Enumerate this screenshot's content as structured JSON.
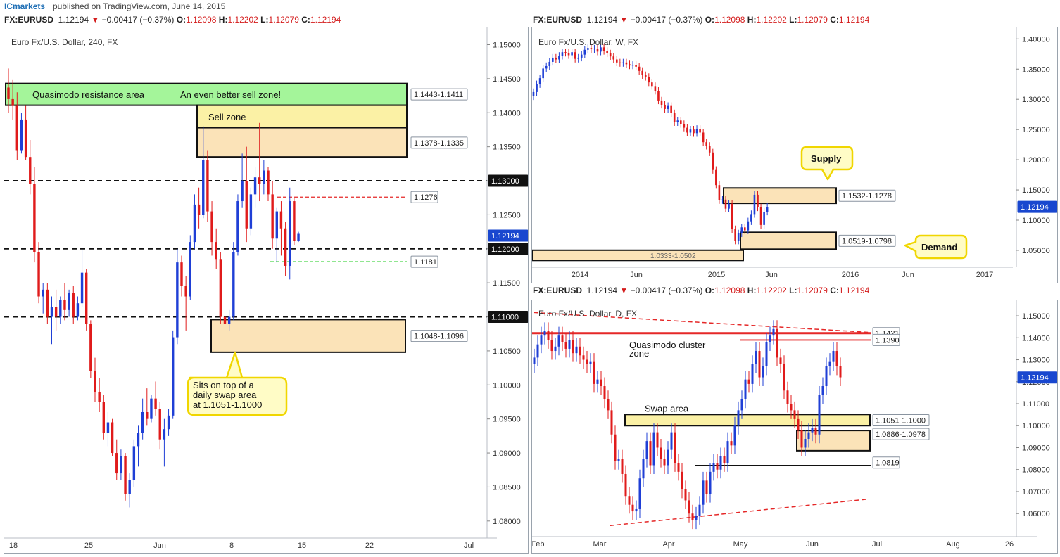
{
  "topbar": {
    "brand": "ICmarkets",
    "published": "published on TradingView.com, June 14, 2015"
  },
  "quote": {
    "symbol": "FX:EURUSD",
    "last": "1.12194",
    "change": "−0.00417 (−0.37%)",
    "open_label": "O:",
    "open": "1.12098",
    "high_label": "H:",
    "high": "1.12202",
    "low_label": "L:",
    "low": "1.12079",
    "close_label": "C:",
    "close": "1.12194"
  },
  "colors": {
    "bull": "#1f3fd6",
    "bear": "#e01b1b",
    "zone_fill": "#fbe3b8",
    "sell_zone_fill": "#fbf1a5",
    "resistance_fill": "#a4f59a",
    "callout_fill": "#fffcc6",
    "callout_border": "#f0d600",
    "price_tag": "#1947cf",
    "axis_text": "#333333"
  },
  "chart_data": [
    {
      "id": "h4",
      "type": "candlestick",
      "title": "Euro Fx/U.S. Dollar, 240, FX",
      "x_tick_labels": [
        "18",
        "25",
        "Jun",
        "8",
        "15",
        "22",
        "Jul"
      ],
      "y_tick_labels": [
        "1.15000",
        "1.14500",
        "1.14000",
        "1.13500",
        "1.13000",
        "1.12500",
        "1.12000",
        "1.11500",
        "1.11000",
        "1.10500",
        "1.10000",
        "1.09500",
        "1.09000",
        "1.08500",
        "1.08000"
      ],
      "ylim": [
        1.0775,
        1.1515
      ],
      "last_price_tag": "1.12194",
      "last_price": 1.12194,
      "zones": [
        {
          "label_left": "Quasimodo resistance area",
          "label_right": "An even better sell zone!",
          "tag": "1.1443-1.1411",
          "low": 1.1411,
          "high": 1.1443,
          "kind": "resistance"
        },
        {
          "label": "Sell zone",
          "tag": "1.1378-1.1335",
          "low": 1.1335,
          "high": 1.1378,
          "kind": "sell"
        },
        {
          "tag": "1.1048-1.1096",
          "low": 1.1048,
          "high": 1.1096,
          "kind": "demand"
        }
      ],
      "levels": [
        {
          "tag": "1.13000",
          "value": 1.13,
          "style": "black-dashed"
        },
        {
          "tag": "1.12000",
          "value": 1.12,
          "style": "black-dashed"
        },
        {
          "tag": "1.11000",
          "value": 1.11,
          "style": "black-dashed"
        },
        {
          "tag": "1.1276",
          "value": 1.1276,
          "style": "red-dashed"
        },
        {
          "tag": "1.1181",
          "value": 1.1181,
          "style": "green-dashed"
        }
      ],
      "callouts": [
        {
          "text": [
            "Sits on top of a",
            "daily swap area",
            "at 1.1051-1.1000"
          ]
        }
      ],
      "candles": [
        [
          1.1437,
          1.1465,
          1.14,
          1.142
        ],
        [
          1.142,
          1.1448,
          1.139,
          1.141
        ],
        [
          1.141,
          1.143,
          1.133,
          1.1345
        ],
        [
          1.1345,
          1.14,
          1.134,
          1.139
        ],
        [
          1.139,
          1.141,
          1.133,
          1.1335
        ],
        [
          1.1335,
          1.136,
          1.128,
          1.1295
        ],
        [
          1.1295,
          1.132,
          1.118,
          1.1195
        ],
        [
          1.1195,
          1.121,
          1.112,
          1.113
        ],
        [
          1.113,
          1.115,
          1.1105,
          1.114
        ],
        [
          1.114,
          1.115,
          1.109,
          1.11
        ],
        [
          1.11,
          1.113,
          1.106,
          1.1115
        ],
        [
          1.1115,
          1.114,
          1.108,
          1.11
        ],
        [
          1.11,
          1.113,
          1.109,
          1.1125
        ],
        [
          1.1125,
          1.115,
          1.1095,
          1.111
        ],
        [
          1.111,
          1.114,
          1.11,
          1.1135
        ],
        [
          1.1135,
          1.1145,
          1.109,
          1.11
        ],
        [
          1.11,
          1.113,
          1.1095,
          1.112
        ],
        [
          1.112,
          1.12,
          1.1115,
          1.1165
        ],
        [
          1.1165,
          1.117,
          1.108,
          1.109
        ],
        [
          1.109,
          1.1095,
          1.101,
          1.102
        ],
        [
          1.102,
          1.104,
          1.0975,
          1.099
        ],
        [
          1.099,
          1.101,
          1.096,
          1.0975
        ],
        [
          1.0975,
          1.0985,
          1.092,
          1.093
        ],
        [
          1.093,
          1.096,
          1.091,
          1.0945
        ],
        [
          1.0945,
          1.095,
          1.0895,
          1.09
        ],
        [
          1.09,
          1.092,
          1.086,
          1.087
        ],
        [
          1.087,
          1.0905,
          1.086,
          1.0895
        ],
        [
          1.0895,
          1.09,
          1.083,
          1.084
        ],
        [
          1.084,
          1.087,
          1.082,
          1.086
        ],
        [
          1.086,
          1.092,
          1.085,
          1.091
        ],
        [
          1.091,
          1.094,
          1.088,
          1.093
        ],
        [
          1.093,
          1.098,
          1.092,
          1.096
        ],
        [
          1.096,
          1.0995,
          1.094,
          1.095
        ],
        [
          1.095,
          1.0985,
          1.0945,
          1.098
        ],
        [
          1.098,
          1.1005,
          1.0955,
          1.0965
        ],
        [
          1.0965,
          1.0975,
          1.0905,
          1.092
        ],
        [
          1.092,
          1.095,
          1.088,
          1.0935
        ],
        [
          1.0935,
          1.0965,
          1.0925,
          1.0955
        ],
        [
          1.0955,
          1.108,
          1.095,
          1.107
        ],
        [
          1.107,
          1.12,
          1.106,
          1.118
        ],
        [
          1.118,
          1.119,
          1.113,
          1.1145
        ],
        [
          1.1145,
          1.116,
          1.108,
          1.113
        ],
        [
          1.113,
          1.122,
          1.1125,
          1.121
        ],
        [
          1.121,
          1.128,
          1.12,
          1.1265
        ],
        [
          1.1265,
          1.129,
          1.123,
          1.125
        ],
        [
          1.125,
          1.138,
          1.1245,
          1.133
        ],
        [
          1.133,
          1.1345,
          1.124,
          1.1255
        ],
        [
          1.1255,
          1.127,
          1.119,
          1.121
        ],
        [
          1.121,
          1.123,
          1.117,
          1.1185
        ],
        [
          1.1185,
          1.1195,
          1.109,
          1.11
        ],
        [
          1.11,
          1.113,
          1.105,
          1.109
        ],
        [
          1.109,
          1.111,
          1.108,
          1.11
        ],
        [
          1.11,
          1.121,
          1.1095,
          1.1195
        ],
        [
          1.1195,
          1.128,
          1.119,
          1.127
        ],
        [
          1.127,
          1.134,
          1.126,
          1.13
        ],
        [
          1.13,
          1.135,
          1.121,
          1.123
        ],
        [
          1.123,
          1.129,
          1.122,
          1.128
        ],
        [
          1.128,
          1.132,
          1.126,
          1.1305
        ],
        [
          1.1305,
          1.1385,
          1.127,
          1.1295
        ],
        [
          1.1295,
          1.133,
          1.128,
          1.1315
        ],
        [
          1.1315,
          1.132,
          1.127,
          1.128
        ],
        [
          1.128,
          1.13,
          1.12,
          1.1215
        ],
        [
          1.1215,
          1.126,
          1.118,
          1.1255
        ],
        [
          1.1255,
          1.127,
          1.119,
          1.123
        ],
        [
          1.123,
          1.124,
          1.116,
          1.1175
        ],
        [
          1.1175,
          1.129,
          1.1155,
          1.127
        ],
        [
          1.127,
          1.1275,
          1.1205,
          1.1212
        ],
        [
          1.1212,
          1.1225,
          1.121,
          1.1222
        ]
      ]
    },
    {
      "id": "weekly",
      "type": "candlestick",
      "title": "Euro Fx/U.S. Dollar, W, FX",
      "x_tick_labels": [
        "2014",
        "Jun",
        "2015",
        "Jun",
        "2016",
        "Jun",
        "2017"
      ],
      "y_tick_labels": [
        "1.40000",
        "1.35000",
        "1.30000",
        "1.25000",
        "1.20000",
        "1.15000",
        "1.10000",
        "1.05000"
      ],
      "ylim": [
        1.022,
        1.412
      ],
      "last_price_tag": "1.12194",
      "last_price": 1.12194,
      "zones": [
        {
          "tag": "1.1532-1.1278",
          "low": 1.1278,
          "high": 1.1532,
          "kind": "supply"
        },
        {
          "tag": "1.0519-1.0798",
          "low": 1.0519,
          "high": 1.0798,
          "kind": "demand"
        },
        {
          "tag": "1.0333-1.0502",
          "low": 1.0333,
          "high": 1.0502,
          "kind": "demand"
        }
      ],
      "callouts": [
        {
          "text": [
            "Supply"
          ]
        },
        {
          "text": [
            "Demand"
          ]
        }
      ],
      "closes": [
        1.312,
        1.325,
        1.335,
        1.351,
        1.355,
        1.362,
        1.369,
        1.366,
        1.372,
        1.378,
        1.377,
        1.373,
        1.378,
        1.367,
        1.369,
        1.374,
        1.382,
        1.385,
        1.383,
        1.384,
        1.379,
        1.386,
        1.38,
        1.376,
        1.371,
        1.366,
        1.361,
        1.36,
        1.361,
        1.358,
        1.356,
        1.357,
        1.354,
        1.347,
        1.34,
        1.337,
        1.328,
        1.322,
        1.314,
        1.298,
        1.291,
        1.284,
        1.289,
        1.277,
        1.262,
        1.265,
        1.259,
        1.253,
        1.245,
        1.25,
        1.244,
        1.251,
        1.245,
        1.229,
        1.223,
        1.212,
        1.183,
        1.158,
        1.133,
        1.134,
        1.119,
        1.127,
        1.085,
        1.066,
        1.078,
        1.088,
        1.083,
        1.098,
        1.11,
        1.142,
        1.121,
        1.092,
        1.114,
        1.122
      ]
    },
    {
      "id": "daily",
      "type": "candlestick",
      "title": "Euro Fx/U.S. Dollar, D, FX",
      "x_tick_labels": [
        "Feb",
        "Mar",
        "Apr",
        "May",
        "Jun",
        "Jul",
        "Aug",
        "26"
      ],
      "y_tick_labels": [
        "1.15000",
        "1.14000",
        "1.13000",
        "1.12000",
        "1.11000",
        "1.10000",
        "1.09000",
        "1.08000",
        "1.07000",
        "1.06000"
      ],
      "ylim": [
        1.0495,
        1.1545
      ],
      "last_price_tag": "1.12194",
      "last_price": 1.12194,
      "annotations": [
        "Quasimodo cluster",
        "zone",
        "Swap area"
      ],
      "zones": [
        {
          "tag": "1.1051-1.1000",
          "low": 1.1,
          "high": 1.1051,
          "kind": "swap"
        },
        {
          "tag": "1.0886-1.0978",
          "low": 1.0886,
          "high": 1.0978,
          "kind": "demand"
        }
      ],
      "levels": [
        {
          "tag": "1.1421",
          "value": 1.1421,
          "style": "red-solid"
        },
        {
          "tag": "1.1390",
          "value": 1.139,
          "style": "red-solid"
        },
        {
          "tag": "1.0819",
          "value": 1.0819,
          "style": "black-solid"
        }
      ],
      "closes": [
        1.131,
        1.137,
        1.141,
        1.143,
        1.139,
        1.134,
        1.136,
        1.141,
        1.138,
        1.135,
        1.139,
        1.133,
        1.136,
        1.132,
        1.13,
        1.128,
        1.129,
        1.119,
        1.121,
        1.118,
        1.112,
        1.107,
        1.096,
        1.084,
        1.085,
        1.078,
        1.068,
        1.064,
        1.061,
        1.062,
        1.076,
        1.085,
        1.093,
        1.082,
        1.097,
        1.09,
        1.085,
        1.082,
        1.089,
        1.097,
        1.083,
        1.079,
        1.071,
        1.066,
        1.06,
        1.057,
        1.059,
        1.064,
        1.075,
        1.069,
        1.079,
        1.083,
        1.08,
        1.086,
        1.083,
        1.093,
        1.091,
        1.1,
        1.107,
        1.112,
        1.121,
        1.119,
        1.128,
        1.134,
        1.122,
        1.127,
        1.138,
        1.141,
        1.144,
        1.131,
        1.128,
        1.116,
        1.11,
        1.107,
        1.103,
        1.098,
        1.09,
        1.094,
        1.097,
        1.099,
        1.096,
        1.114,
        1.118,
        1.127,
        1.129,
        1.134,
        1.127,
        1.122
      ]
    }
  ]
}
